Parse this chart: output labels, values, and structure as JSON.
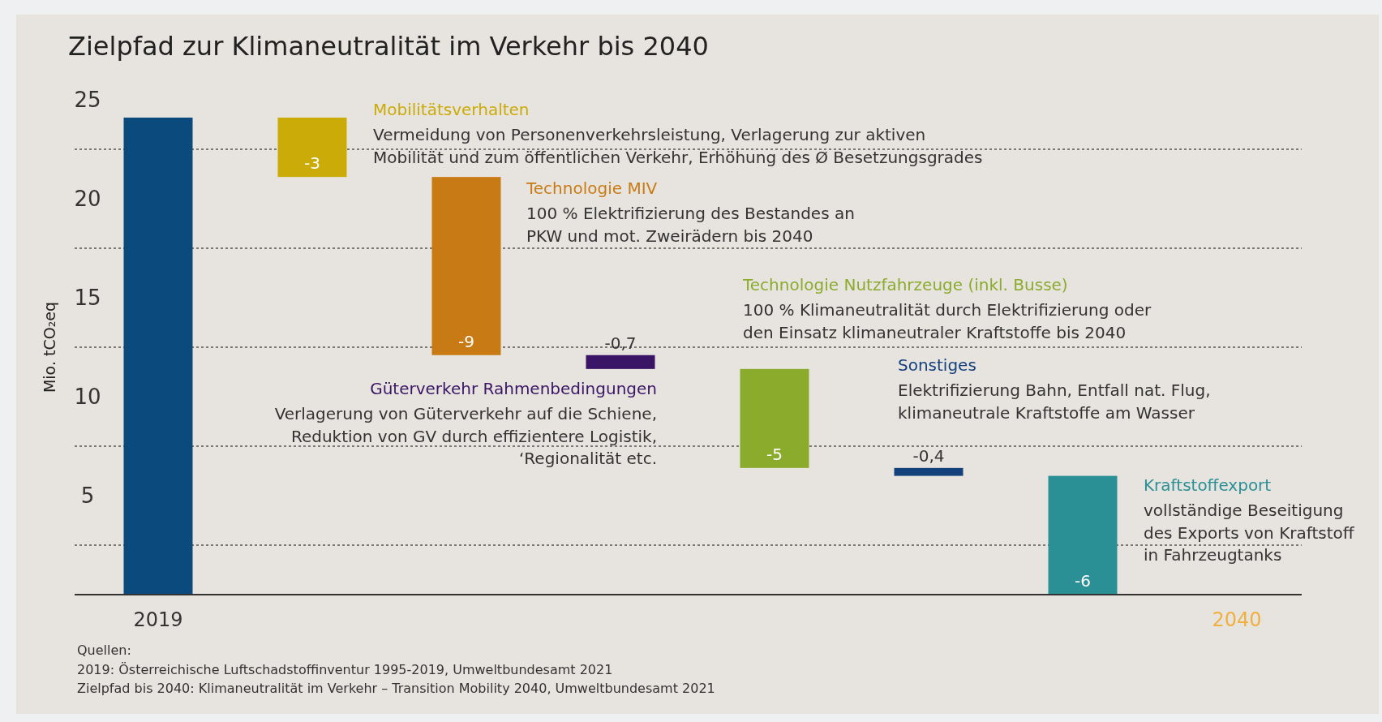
{
  "chart_data": {
    "type": "bar",
    "title": "Zielpfad zur Klimaneutralität im Verkehr bis 2040",
    "ylabel": "Mio. tCO₂eq",
    "categories": [
      "2019",
      null,
      null,
      null,
      null,
      null,
      null,
      "2040"
    ],
    "values": [
      24.1,
      -3,
      -9,
      -0.7,
      -5,
      -0.4,
      -6,
      null
    ],
    "base": [
      0,
      24.1,
      21.1,
      12.1,
      11.4,
      6.4,
      6.0,
      null
    ],
    "colors": [
      "#0b4a7c",
      "#cbab07",
      "#c87b15",
      "#3a1465",
      "#8bab2c",
      "#14417c",
      "#2a9096",
      "#f0b040"
    ],
    "value_labels": [
      null,
      "-3",
      "-9",
      "-0,7",
      "-5",
      "-0,4",
      "-6",
      null
    ],
    "ylim": [
      0,
      25
    ],
    "yticks": [
      5,
      10,
      15,
      20,
      25
    ],
    "ref_lines": [
      {
        "axis": "y",
        "value": 2.5,
        "label": null,
        "line_style": "dotted",
        "color": "#555555"
      },
      {
        "axis": "y",
        "value": 7.5,
        "label": null,
        "line_style": "dotted",
        "color": "#555555"
      },
      {
        "axis": "y",
        "value": 12.5,
        "label": null,
        "line_style": "dotted",
        "color": "#555555"
      },
      {
        "axis": "y",
        "value": 17.5,
        "label": null,
        "line_style": "dotted",
        "color": "#555555"
      },
      {
        "axis": "y",
        "value": 22.5,
        "label": null,
        "line_style": "dotted",
        "color": "#555555"
      }
    ],
    "annotations": [
      "Mobilitätsverhalten",
      "Vermeidung von Personenverkehrsleistung, Verlagerung zur aktiven\nMobilität und zum öffentlichen Verkehr, Erhöhung des Ø Besetzungsgrades",
      "Technologie MIV",
      "100 % Elektrifizierung des Bestandes an\nPKW und mot. Zweirädern bis 2040",
      "Güterverkehr Rahmenbedingungen",
      "Verlagerung von Güterverkehr auf die Schiene,\nReduktion von GV durch effizientere Logistik,\n‘Regionalität etc.",
      "Technologie Nutzfahrzeuge (inkl. Busse)",
      "100 % Klimaneutralität durch Elektrifizierung oder\nden Einsatz klimaneutraler Kraftstoffe bis 2040",
      "Sonstiges",
      "Elektrifizierung Bahn, Entfall nat. Flug,\nklimaneutrale Kraftstoffe am Wasser",
      "Kraftstoffexport",
      "vollständige Beseitigung\ndes Exports von Kraftstoff\nin Fahrzeugtanks",
      "Quellen:\n2019: Österreichische Luftschadstoffinventur 1995-2019, Umweltbundesamt 2021\nZielpfad bis 2040: Klimaneutralität im Verkehr – Transition Mobility 2040, Umweltbundesamt 2021"
    ]
  }
}
